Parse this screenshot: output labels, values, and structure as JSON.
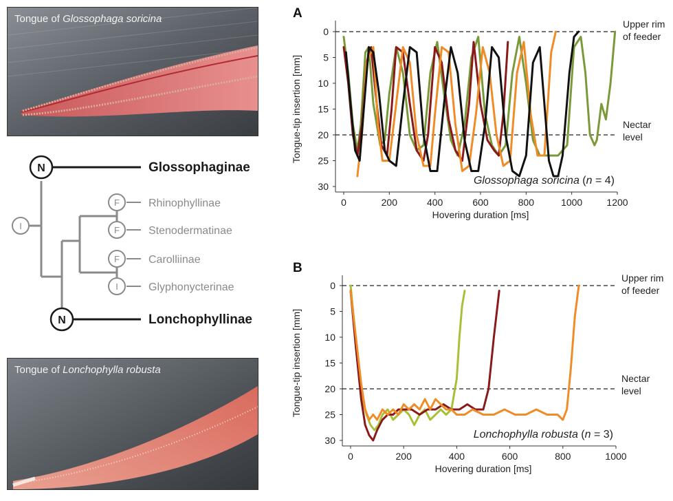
{
  "photos": {
    "top_caption_prefix": "Tongue of ",
    "top_caption_species": "Glossophaga soricina",
    "bottom_caption_prefix": "Tongue of ",
    "bottom_caption_species": "Lonchophylla robusta"
  },
  "tree": {
    "root_node": "I",
    "taxa": [
      {
        "name": "Glossophaginae",
        "node": "N",
        "emphasis": true
      },
      {
        "name": "Rhinophyllinae",
        "node": "F",
        "emphasis": false
      },
      {
        "name": "Stenodermatinae",
        "node": "F",
        "emphasis": false
      },
      {
        "name": "Carolliinae",
        "node": "F",
        "emphasis": false
      },
      {
        "name": "Glyphonycterinae",
        "node": "I",
        "emphasis": false
      },
      {
        "name": "Lonchophyllinae",
        "node": "N",
        "emphasis": true
      }
    ],
    "colors": {
      "emphasis": "#1a1a1a",
      "muted": "#8a8a8a"
    }
  },
  "chart_data": [
    {
      "panel": "A",
      "type": "line",
      "xlabel": "Hovering duration [ms]",
      "ylabel": "Tongue-tip insertion [mm]",
      "xlim": [
        0,
        1200
      ],
      "ylim": [
        30,
        0
      ],
      "y_inverted": true,
      "xticks": [
        0,
        200,
        400,
        600,
        800,
        1000,
        1200
      ],
      "yticks": [
        0,
        5,
        10,
        15,
        20,
        25,
        30
      ],
      "reference_lines": [
        {
          "y": 0,
          "label_line1": "Upper rim",
          "label_line2": "of feeder"
        },
        {
          "y": 20,
          "label_line1": "Nectar",
          "label_line2": "level"
        }
      ],
      "annotation_species": "Glossophaga soricina",
      "annotation_n": "n",
      "annotation_count": "4",
      "series": [
        {
          "color": "#7a9a3a",
          "x": [
            0,
            20,
            40,
            60,
            75,
            95,
            110,
            130,
            160,
            180,
            200,
            230,
            260,
            290,
            320,
            350,
            380,
            410,
            440,
            470,
            500,
            530,
            560,
            590,
            620,
            650,
            680,
            710,
            740,
            770,
            800,
            830,
            860,
            900,
            940,
            980,
            1010,
            1040,
            1060,
            1080,
            1100,
            1110,
            1130,
            1150,
            1170,
            1190
          ],
          "y": [
            1,
            8,
            18,
            23,
            18,
            4,
            3,
            14,
            22,
            21,
            12,
            3,
            8,
            20,
            23,
            22,
            8,
            2,
            12,
            21,
            24,
            18,
            5,
            1,
            16,
            22,
            24,
            22,
            8,
            1,
            10,
            21,
            24,
            24,
            24,
            22,
            3,
            1,
            8,
            20,
            22,
            21,
            14,
            17,
            10,
            0
          ]
        },
        {
          "color": "#8a1a1a",
          "x": [
            0,
            20,
            40,
            60,
            80,
            100,
            120,
            140,
            165,
            190,
            210,
            230,
            260,
            290,
            320,
            350,
            370,
            400,
            430,
            460,
            490,
            520,
            550,
            570,
            600,
            630,
            660,
            680,
            700,
            720
          ],
          "y": [
            3,
            10,
            20,
            24,
            18,
            6,
            3,
            12,
            22,
            24,
            15,
            3,
            4,
            14,
            23,
            25,
            20,
            3,
            6,
            17,
            23,
            25,
            14,
            2,
            14,
            21,
            23,
            24,
            16,
            2
          ]
        },
        {
          "color": "#f08c28",
          "x": [
            60,
            80,
            100,
            130,
            150,
            170,
            200,
            230,
            260,
            290,
            320,
            350,
            380,
            400,
            430,
            460,
            490,
            520,
            550,
            580,
            610,
            640,
            670,
            700,
            730,
            760,
            790,
            820,
            850,
            880,
            910,
            930
          ],
          "y": [
            28,
            20,
            6,
            3,
            18,
            25,
            25,
            14,
            3,
            6,
            20,
            26,
            26,
            16,
            3,
            4,
            18,
            27,
            26,
            16,
            3,
            8,
            20,
            26,
            25,
            8,
            2,
            16,
            24,
            24,
            4,
            0
          ]
        },
        {
          "color": "#111111",
          "x": [
            10,
            30,
            50,
            70,
            90,
            110,
            130,
            155,
            180,
            200,
            230,
            260,
            290,
            320,
            350,
            380,
            410,
            440,
            470,
            500,
            530,
            560,
            590,
            620,
            650,
            680,
            710,
            740,
            770,
            800,
            830,
            860,
            880,
            900,
            920,
            940,
            960,
            990,
            1010,
            1030
          ],
          "y": [
            4,
            14,
            23,
            25,
            14,
            3,
            4,
            12,
            23,
            25,
            26,
            14,
            3,
            4,
            20,
            27,
            27,
            14,
            3,
            8,
            21,
            27,
            27,
            18,
            3,
            5,
            20,
            27,
            28,
            24,
            6,
            3,
            14,
            25,
            28,
            28,
            24,
            8,
            1,
            0
          ]
        }
      ]
    },
    {
      "panel": "B",
      "type": "line",
      "xlabel": "Hovering duration [ms]",
      "ylabel": "Tongue-tip insertion [mm]",
      "xlim": [
        0,
        1000
      ],
      "ylim": [
        30,
        0
      ],
      "y_inverted": true,
      "xticks": [
        0,
        200,
        400,
        600,
        800,
        1000
      ],
      "yticks": [
        0,
        5,
        10,
        15,
        20,
        25,
        30
      ],
      "reference_lines": [
        {
          "y": 0,
          "label_line1": "Upper rim",
          "label_line2": "of feeder"
        },
        {
          "y": 20,
          "label_line1": "Nectar",
          "label_line2": "level"
        }
      ],
      "annotation_species": "Lonchophylla robusta",
      "annotation_n": "n",
      "annotation_count": "3",
      "series": [
        {
          "color": "#a8c038",
          "x": [
            0,
            15,
            30,
            45,
            60,
            75,
            90,
            105,
            120,
            140,
            160,
            180,
            200,
            220,
            240,
            260,
            280,
            300,
            320,
            340,
            360,
            380,
            400,
            410,
            420,
            430
          ],
          "y": [
            0,
            8,
            16,
            22,
            25,
            27,
            28,
            27,
            25,
            24,
            26,
            25,
            24,
            25,
            27,
            25,
            24,
            26,
            25,
            24,
            25,
            24,
            18,
            10,
            4,
            1
          ]
        },
        {
          "color": "#8a1a1a",
          "x": [
            0,
            20,
            40,
            55,
            70,
            85,
            100,
            120,
            140,
            160,
            180,
            200,
            230,
            260,
            290,
            320,
            350,
            380,
            410,
            440,
            470,
            500,
            520,
            540,
            560
          ],
          "y": [
            1,
            12,
            22,
            27,
            29,
            30,
            28,
            26,
            25,
            25,
            24,
            24,
            24,
            25,
            24,
            24,
            23,
            24,
            24,
            23,
            24,
            24,
            20,
            10,
            1
          ]
        },
        {
          "color": "#f08c28",
          "x": [
            0,
            20,
            40,
            55,
            70,
            85,
            100,
            120,
            140,
            160,
            180,
            200,
            220,
            240,
            260,
            280,
            300,
            320,
            340,
            360,
            380,
            400,
            430,
            460,
            500,
            540,
            580,
            620,
            660,
            700,
            740,
            780,
            800,
            815,
            830,
            845,
            860
          ],
          "y": [
            1,
            10,
            19,
            24,
            26,
            25,
            26,
            24,
            25,
            24,
            25,
            23,
            24,
            23,
            24,
            22,
            24,
            22,
            23,
            24,
            24,
            25,
            25,
            24,
            25,
            25,
            24,
            25,
            25,
            24,
            25,
            25,
            26,
            24,
            16,
            6,
            0
          ]
        }
      ]
    }
  ]
}
